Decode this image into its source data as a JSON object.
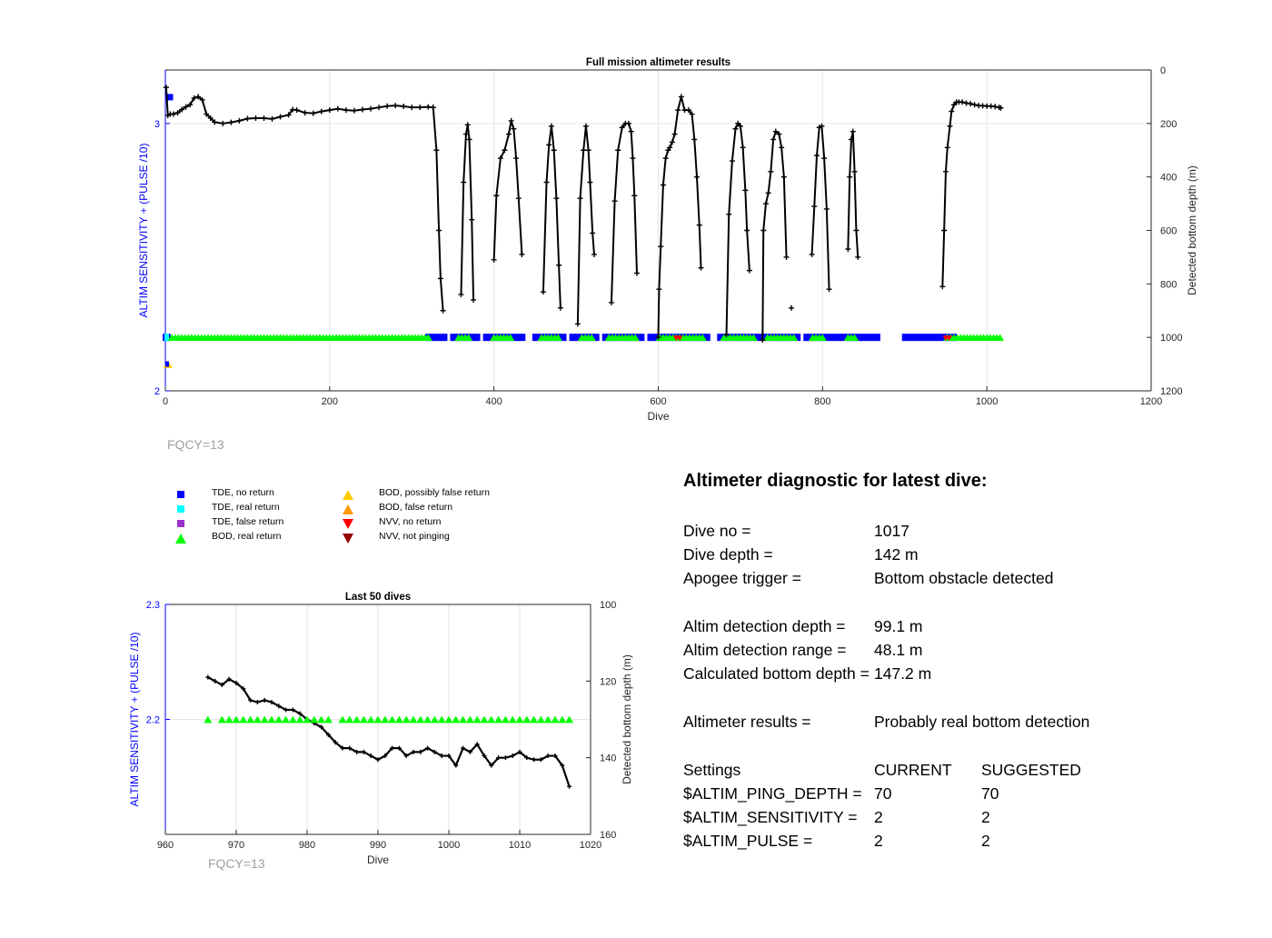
{
  "chart_data": [
    {
      "type": "line",
      "title": "Full mission altimeter results",
      "xlabel": "Dive",
      "ylabel_left": "ALTIM SENSITIVITY + (PULSE /10)",
      "ylabel_right": "Detected bottom depth (m)",
      "xlim": [
        0,
        1200
      ],
      "ylim_left": [
        2,
        3.2
      ],
      "ylim_right": [
        0,
        1200
      ],
      "right_axis_reversed": true,
      "x_ticks": [
        "0",
        "200",
        "400",
        "600",
        "800",
        "1000",
        "1200"
      ],
      "y_left_ticks": [
        "2",
        "3"
      ],
      "y_right_ticks": [
        "0",
        "200",
        "400",
        "600",
        "800",
        "1000",
        "1200"
      ],
      "grid": true,
      "series": [
        {
          "marker": "plus",
          "color": "#000000",
          "segments": [
            {
              "x": [
                1,
                3,
                6,
                10,
                15,
                20,
                25,
                30,
                35,
                40,
                45,
                50,
                55,
                60,
                70,
                80,
                90,
                100,
                110,
                120,
                130,
                140,
                150,
                155,
                160,
                170,
                180,
                190,
                200,
                210,
                220,
                230,
                240,
                250,
                260,
                270,
                280,
                290,
                300,
                310,
                320,
                326
              ],
              "y": [
                65,
                170,
                165,
                165,
                160,
                148,
                138,
                130,
                105,
                100,
                112,
                165,
                180,
                195,
                200,
                196,
                190,
                182,
                180,
                180,
                183,
                175,
                168,
                148,
                150,
                160,
                162,
                155,
                150,
                145,
                150,
                152,
                148,
                145,
                140,
                135,
                133,
                136,
                140,
                140,
                138,
                140
              ]
            },
            {
              "x": [
                326,
                330,
                333,
                335,
                338
              ],
              "y": [
                140,
                300,
                600,
                780,
                900
              ]
            },
            {
              "x": [
                360,
                363,
                366,
                368,
                370,
                373,
                375
              ],
              "y": [
                840,
                420,
                240,
                205,
                260,
                560,
                860
              ]
            },
            {
              "x": [
                400,
                403,
                408,
                413,
                418,
                421,
                424,
                427,
                430,
                434
              ],
              "y": [
                710,
                470,
                330,
                300,
                240,
                190,
                220,
                330,
                480,
                690
              ]
            },
            {
              "x": [
                460,
                464,
                467,
                470,
                473,
                476,
                479,
                481
              ],
              "y": [
                830,
                420,
                280,
                210,
                300,
                480,
                730,
                890
              ]
            },
            {
              "x": [
                502,
                505,
                509,
                512,
                515,
                517,
                520,
                522
              ],
              "y": [
                950,
                480,
                300,
                210,
                300,
                420,
                610,
                690
              ]
            },
            {
              "x": [
                543,
                547,
                551,
                556,
                560,
                564,
                567,
                569,
                571,
                574
              ],
              "y": [
                870,
                490,
                300,
                215,
                200,
                200,
                230,
                330,
                470,
                760
              ]
            },
            {
              "x": [
                600,
                601,
                603,
                606,
                609,
                612,
                614,
                617,
                620,
                624,
                628,
                632,
                637,
                641,
                644,
                647,
                650,
                652
              ],
              "y": [
                1000,
                820,
                660,
                430,
                330,
                300,
                290,
                270,
                240,
                150,
                100,
                150,
                150,
                165,
                260,
                400,
                580,
                740
              ]
            },
            {
              "x": [
                683,
                686,
                690,
                694,
                697,
                700,
                703,
                706,
                708,
                711
              ],
              "y": [
                990,
                540,
                340,
                220,
                200,
                210,
                290,
                450,
                600,
                750
              ]
            },
            {
              "x": [
                727,
                728,
                731,
                734,
                737,
                740,
                743,
                747,
                750,
                753,
                756
              ],
              "y": [
                1010,
                600,
                500,
                460,
                380,
                260,
                230,
                240,
                290,
                400,
                700
              ]
            },
            {
              "x": [
                787,
                790,
                793,
                796,
                799,
                802,
                805,
                808
              ],
              "y": [
                690,
                510,
                320,
                215,
                210,
                330,
                520,
                820
              ]
            },
            {
              "x": [
                831,
                833,
                835,
                837,
                839,
                841,
                843
              ],
              "y": [
                670,
                400,
                260,
                230,
                380,
                600,
                700
              ]
            },
            {
              "x": [
                946,
                948,
                950,
                952,
                955,
                957,
                960,
                963,
                966,
                970,
                975,
                980,
                985,
                990,
                995,
                1000,
                1005,
                1010,
                1015,
                1017
              ],
              "y": [
                810,
                600,
                380,
                290,
                210,
                155,
                130,
                120,
                120,
                120,
                124,
                126,
                130,
                133,
                134,
                135,
                135,
                137,
                140,
                142
              ]
            }
          ],
          "isolated_points": [
            {
              "x": 762,
              "y": 890
            }
          ]
        }
      ],
      "bands": {
        "y_left": 2.2,
        "tde_no_return_ranges": [
          [
            0,
            3
          ],
          [
            320,
            340
          ],
          [
            350,
            380
          ],
          [
            390,
            435
          ],
          [
            450,
            485
          ],
          [
            495,
            525
          ],
          [
            535,
            580
          ],
          [
            590,
            660
          ],
          [
            675,
            770
          ],
          [
            780,
            820
          ],
          [
            825,
            845
          ],
          [
            850,
            867
          ],
          [
            900,
            960
          ]
        ],
        "bod_real_return_ranges": [
          [
            8,
            320
          ],
          [
            357,
            372
          ],
          [
            400,
            420
          ],
          [
            458,
            480
          ],
          [
            507,
            520
          ],
          [
            540,
            575
          ],
          [
            602,
            655
          ],
          [
            680,
            718
          ],
          [
            733,
            765
          ],
          [
            788,
            800
          ],
          [
            831,
            840
          ],
          [
            952,
            1017
          ]
        ],
        "tde_real_return_ranges": [
          [
            0,
            3
          ]
        ],
        "nvv_no_return": [
          622,
          626,
          950,
          954
        ],
        "bod_possibly_false_return": [
          {
            "x": 3,
            "y": 2.1
          }
        ],
        "tde_no_return_top": [
          {
            "x": 5,
            "y": 3.1
          }
        ],
        "tde_no_return_low": [
          {
            "x": 0,
            "y": 2.1
          }
        ]
      }
    },
    {
      "type": "line",
      "title": "Last 50 dives",
      "xlabel": "Dive",
      "ylabel_left": "ALTIM SENSITIVITY + (PULSE /10)",
      "ylabel_right": "Detected bottom depth (m)",
      "xlim": [
        960,
        1020
      ],
      "ylim_left": [
        2.1,
        2.3
      ],
      "ylim_right": [
        100,
        160
      ],
      "right_axis_reversed": true,
      "x_ticks": [
        "960",
        "970",
        "980",
        "990",
        "1000",
        "1010",
        "1020"
      ],
      "y_left_ticks": [
        "2.3",
        "2.2"
      ],
      "y_right_ticks": [
        "100",
        "120",
        "140",
        "160"
      ],
      "grid": true,
      "depth_series": {
        "x": [
          966,
          967,
          968,
          969,
          970,
          971,
          972,
          973,
          974,
          975,
          976,
          977,
          978,
          979,
          980,
          981,
          982,
          983,
          984,
          985,
          986,
          987,
          988,
          989,
          990,
          991,
          992,
          993,
          994,
          995,
          996,
          997,
          998,
          999,
          1000,
          1001,
          1002,
          1003,
          1004,
          1005,
          1006,
          1007,
          1008,
          1009,
          1010,
          1011,
          1012,
          1013,
          1014,
          1015,
          1016,
          1017
        ],
        "y": [
          119,
          120,
          121,
          119.5,
          120.5,
          122,
          125,
          125.5,
          125,
          125.5,
          126.5,
          127.5,
          127.5,
          128.5,
          130,
          131,
          132,
          134,
          136,
          137.5,
          137.5,
          138.5,
          138.5,
          139.5,
          140.5,
          139.5,
          137.5,
          137.5,
          139.5,
          138.5,
          138.5,
          137.5,
          138.5,
          139.5,
          139.5,
          142,
          137.5,
          138.5,
          136.5,
          139.5,
          142,
          140,
          140,
          139.5,
          138.5,
          140,
          140.5,
          140.5,
          139.5,
          139.5,
          142,
          147.5
        ]
      },
      "bod_real_return": {
        "x": [
          966,
          968,
          969,
          970,
          971,
          972,
          973,
          974,
          975,
          976,
          977,
          978,
          979,
          980,
          981,
          982,
          983,
          985,
          986,
          987,
          988,
          989,
          990,
          991,
          992,
          993,
          994,
          995,
          996,
          997,
          998,
          999,
          1000,
          1001,
          1002,
          1003,
          1004,
          1005,
          1006,
          1007,
          1008,
          1009,
          1010,
          1011,
          1012,
          1013,
          1014,
          1015,
          1016,
          1017
        ],
        "y": 2.2
      }
    }
  ],
  "legend": {
    "col1": [
      {
        "label": "TDE, no return",
        "shape": "square",
        "color": "#0000ff"
      },
      {
        "label": "TDE, real return",
        "shape": "square",
        "color": "#00ffff"
      },
      {
        "label": "TDE, false return",
        "shape": "square",
        "color": "#9933cc"
      },
      {
        "label": "BOD, real return",
        "shape": "triangle-up",
        "color": "#00ff00"
      }
    ],
    "col2": [
      {
        "label": "BOD, possibly false return",
        "shape": "triangle-up",
        "color": "#ffcc00"
      },
      {
        "label": "BOD, false return",
        "shape": "triangle-up",
        "color": "#ff9900"
      },
      {
        "label": "NVV, no return",
        "shape": "triangle-down",
        "color": "#ff0000"
      },
      {
        "label": "NVV, not pinging",
        "shape": "triangle-down",
        "color": "#990000"
      }
    ]
  },
  "fqcy": {
    "top": "FQCY=13",
    "bottom": "FQCY=13"
  },
  "diagnostic": {
    "title": "Altimeter diagnostic for latest dive:",
    "rows": [
      {
        "label": "Dive no =",
        "value": "1017"
      },
      {
        "label": "Dive depth =",
        "value": "142 m"
      },
      {
        "label": "Apogee trigger =",
        "value": "Bottom obstacle detected"
      },
      {
        "label": "Altim detection depth =",
        "value": "99.1 m"
      },
      {
        "label": "Altim detection range =",
        "value": "48.1 m"
      },
      {
        "label": "Calculated bottom depth =",
        "value": "147.2 m"
      },
      {
        "label": "Altimeter results =",
        "value": "Probably real bottom detection"
      }
    ],
    "settings_header": {
      "label": "Settings",
      "current": "CURRENT",
      "suggested": "SUGGESTED"
    },
    "settings": [
      {
        "label": "$ALTIM_PING_DEPTH =",
        "current": "70",
        "suggested": "70"
      },
      {
        "label": "$ALTIM_SENSITIVITY =",
        "current": "2",
        "suggested": "2"
      },
      {
        "label": "$ALTIM_PULSE =",
        "current": "2",
        "suggested": "2"
      }
    ]
  },
  "colors": {
    "left_axis": "#0000ff",
    "right_axis": "#000000",
    "grid": "#e6e6e6",
    "line": "#000000"
  }
}
